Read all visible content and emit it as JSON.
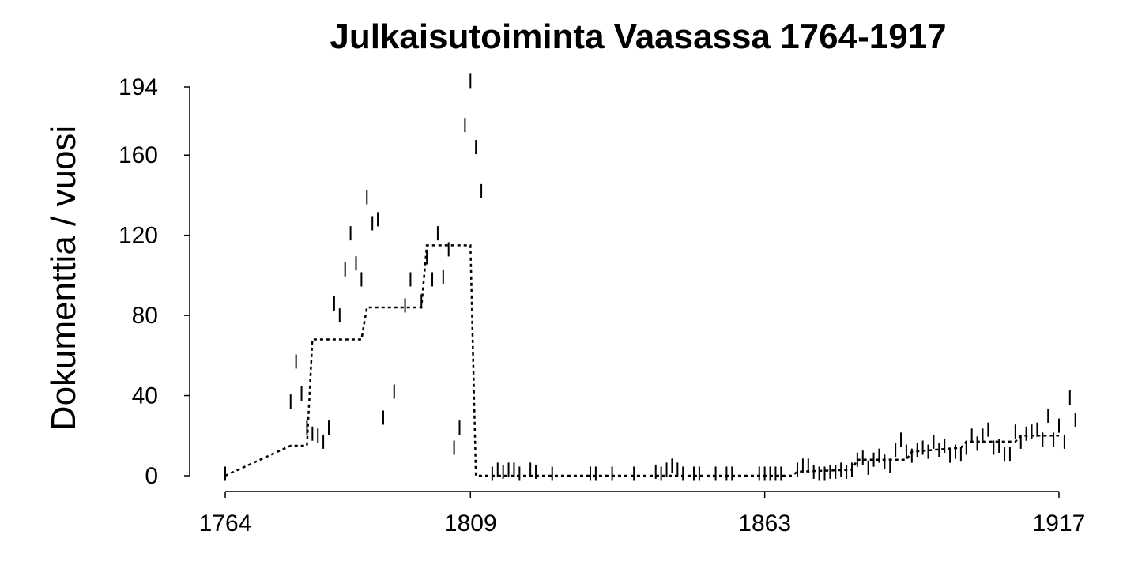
{
  "chart_data": {
    "type": "scatter",
    "title": "Julkaisutoiminta Vaasassa 1764-1917",
    "ylabel": "Dokumenttia / vuosi",
    "xlabel": "",
    "xlim": [
      1764,
      1917
    ],
    "ylim": [
      0,
      194
    ],
    "xticks": [
      1764,
      1809,
      1863,
      1917
    ],
    "yticks": [
      0,
      40,
      80,
      120,
      160,
      194
    ],
    "grid": false,
    "legend": "none",
    "colors": {
      "marks": "#000000",
      "axes": "#000000"
    },
    "series": [
      {
        "marker": "vertical-dash",
        "points": [
          [
            1764,
            1
          ],
          [
            1776,
            37
          ],
          [
            1777,
            57
          ],
          [
            1778,
            41
          ],
          [
            1779,
            24
          ],
          [
            1780,
            21
          ],
          [
            1781,
            20
          ],
          [
            1782,
            17
          ],
          [
            1783,
            24
          ],
          [
            1784,
            86
          ],
          [
            1785,
            80
          ],
          [
            1786,
            103
          ],
          [
            1787,
            121
          ],
          [
            1788,
            106
          ],
          [
            1789,
            98
          ],
          [
            1790,
            139
          ],
          [
            1791,
            126
          ],
          [
            1792,
            128
          ],
          [
            1793,
            29
          ],
          [
            1795,
            42
          ],
          [
            1797,
            85
          ],
          [
            1798,
            98
          ],
          [
            1800,
            87
          ],
          [
            1801,
            109
          ],
          [
            1802,
            98
          ],
          [
            1803,
            121
          ],
          [
            1804,
            99
          ],
          [
            1805,
            113
          ],
          [
            1806,
            14
          ],
          [
            1807,
            24
          ],
          [
            1808,
            175
          ],
          [
            1809,
            197
          ],
          [
            1810,
            164
          ],
          [
            1811,
            142
          ],
          [
            1813,
            1
          ],
          [
            1814,
            3
          ],
          [
            1815,
            2
          ],
          [
            1816,
            3
          ],
          [
            1817,
            3
          ],
          [
            1818,
            1
          ],
          [
            1820,
            3
          ],
          [
            1821,
            2
          ],
          [
            1824,
            1
          ],
          [
            1831,
            1
          ],
          [
            1832,
            1
          ],
          [
            1835,
            1
          ],
          [
            1839,
            1
          ],
          [
            1843,
            2
          ],
          [
            1844,
            1
          ],
          [
            1845,
            3
          ],
          [
            1846,
            5
          ],
          [
            1847,
            3
          ],
          [
            1848,
            1
          ],
          [
            1850,
            1
          ],
          [
            1851,
            1
          ],
          [
            1854,
            1
          ],
          [
            1856,
            1
          ],
          [
            1857,
            1
          ],
          [
            1862,
            1
          ],
          [
            1863,
            1
          ],
          [
            1864,
            1
          ],
          [
            1865,
            1
          ],
          [
            1866,
            1
          ],
          [
            1869,
            3
          ],
          [
            1870,
            5
          ],
          [
            1871,
            5
          ],
          [
            1872,
            2
          ],
          [
            1873,
            1
          ],
          [
            1874,
            1
          ],
          [
            1875,
            2
          ],
          [
            1876,
            2
          ],
          [
            1877,
            3
          ],
          [
            1878,
            2
          ],
          [
            1879,
            3
          ],
          [
            1880,
            8
          ],
          [
            1881,
            9
          ],
          [
            1882,
            4
          ],
          [
            1883,
            8
          ],
          [
            1884,
            10
          ],
          [
            1885,
            7
          ],
          [
            1886,
            5
          ],
          [
            1887,
            13
          ],
          [
            1888,
            18
          ],
          [
            1889,
            12
          ],
          [
            1890,
            10
          ],
          [
            1891,
            13
          ],
          [
            1892,
            14
          ],
          [
            1893,
            12
          ],
          [
            1894,
            17
          ],
          [
            1895,
            13
          ],
          [
            1896,
            15
          ],
          [
            1897,
            10
          ],
          [
            1898,
            12
          ],
          [
            1899,
            11
          ],
          [
            1900,
            14
          ],
          [
            1901,
            20
          ],
          [
            1902,
            16
          ],
          [
            1903,
            20
          ],
          [
            1904,
            23
          ],
          [
            1905,
            14
          ],
          [
            1906,
            15
          ],
          [
            1907,
            11
          ],
          [
            1908,
            11
          ],
          [
            1909,
            22
          ],
          [
            1910,
            17
          ],
          [
            1911,
            21
          ],
          [
            1912,
            22
          ],
          [
            1913,
            23
          ],
          [
            1914,
            18
          ],
          [
            1915,
            30
          ],
          [
            1916,
            18
          ],
          [
            1917,
            25
          ],
          [
            1918,
            17
          ],
          [
            1919,
            39
          ],
          [
            1920,
            28
          ]
        ]
      },
      {
        "marker": "dotted-line",
        "points": [
          [
            1764,
            0
          ],
          [
            1776,
            15
          ],
          [
            1779,
            15
          ],
          [
            1780,
            68
          ],
          [
            1789,
            68
          ],
          [
            1790,
            84
          ],
          [
            1799,
            84
          ],
          [
            1800,
            84
          ],
          [
            1801,
            115
          ],
          [
            1809,
            115
          ],
          [
            1810,
            0
          ],
          [
            1868,
            0
          ],
          [
            1869,
            2
          ],
          [
            1879,
            3
          ],
          [
            1880,
            8
          ],
          [
            1889,
            8
          ],
          [
            1890,
            12
          ],
          [
            1899,
            14
          ],
          [
            1900,
            17
          ],
          [
            1909,
            17
          ],
          [
            1910,
            20
          ],
          [
            1917,
            20
          ]
        ]
      }
    ]
  }
}
